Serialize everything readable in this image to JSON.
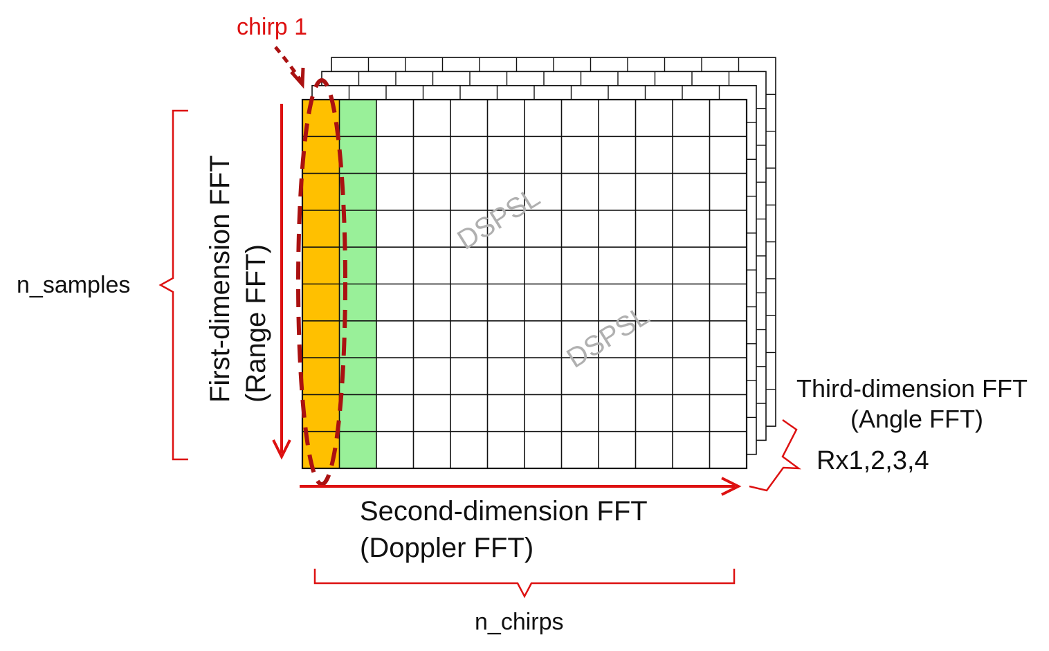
{
  "labels": {
    "chirp": "chirp 1",
    "n_samples": "n_samples",
    "first_dim_line1": "First-dimension FFT",
    "first_dim_line2": "(Range FFT)",
    "second_dim_line1": "Second-dimension FFT",
    "second_dim_line2": "(Doppler FFT)",
    "third_dim_line1": "Third-dimension FFT",
    "third_dim_line2": "(Angle FFT)",
    "rx": "Rx1,2,3,4",
    "n_chirps": "n_chirps",
    "watermark": "DSPSL"
  },
  "grid": {
    "rows": 10,
    "cols": 12,
    "stacked_layers": 3,
    "highlighted_columns": [
      {
        "index": 0,
        "color": "#ffc000"
      },
      {
        "index": 1,
        "color": "#99f099"
      }
    ]
  },
  "colors": {
    "accent_red": "#dd1111",
    "dashed_red": "#aa1111",
    "chirp_label": "#dd1111",
    "grid_line": "#111111",
    "watermark": "#b0b0b0",
    "text": "#111111"
  }
}
